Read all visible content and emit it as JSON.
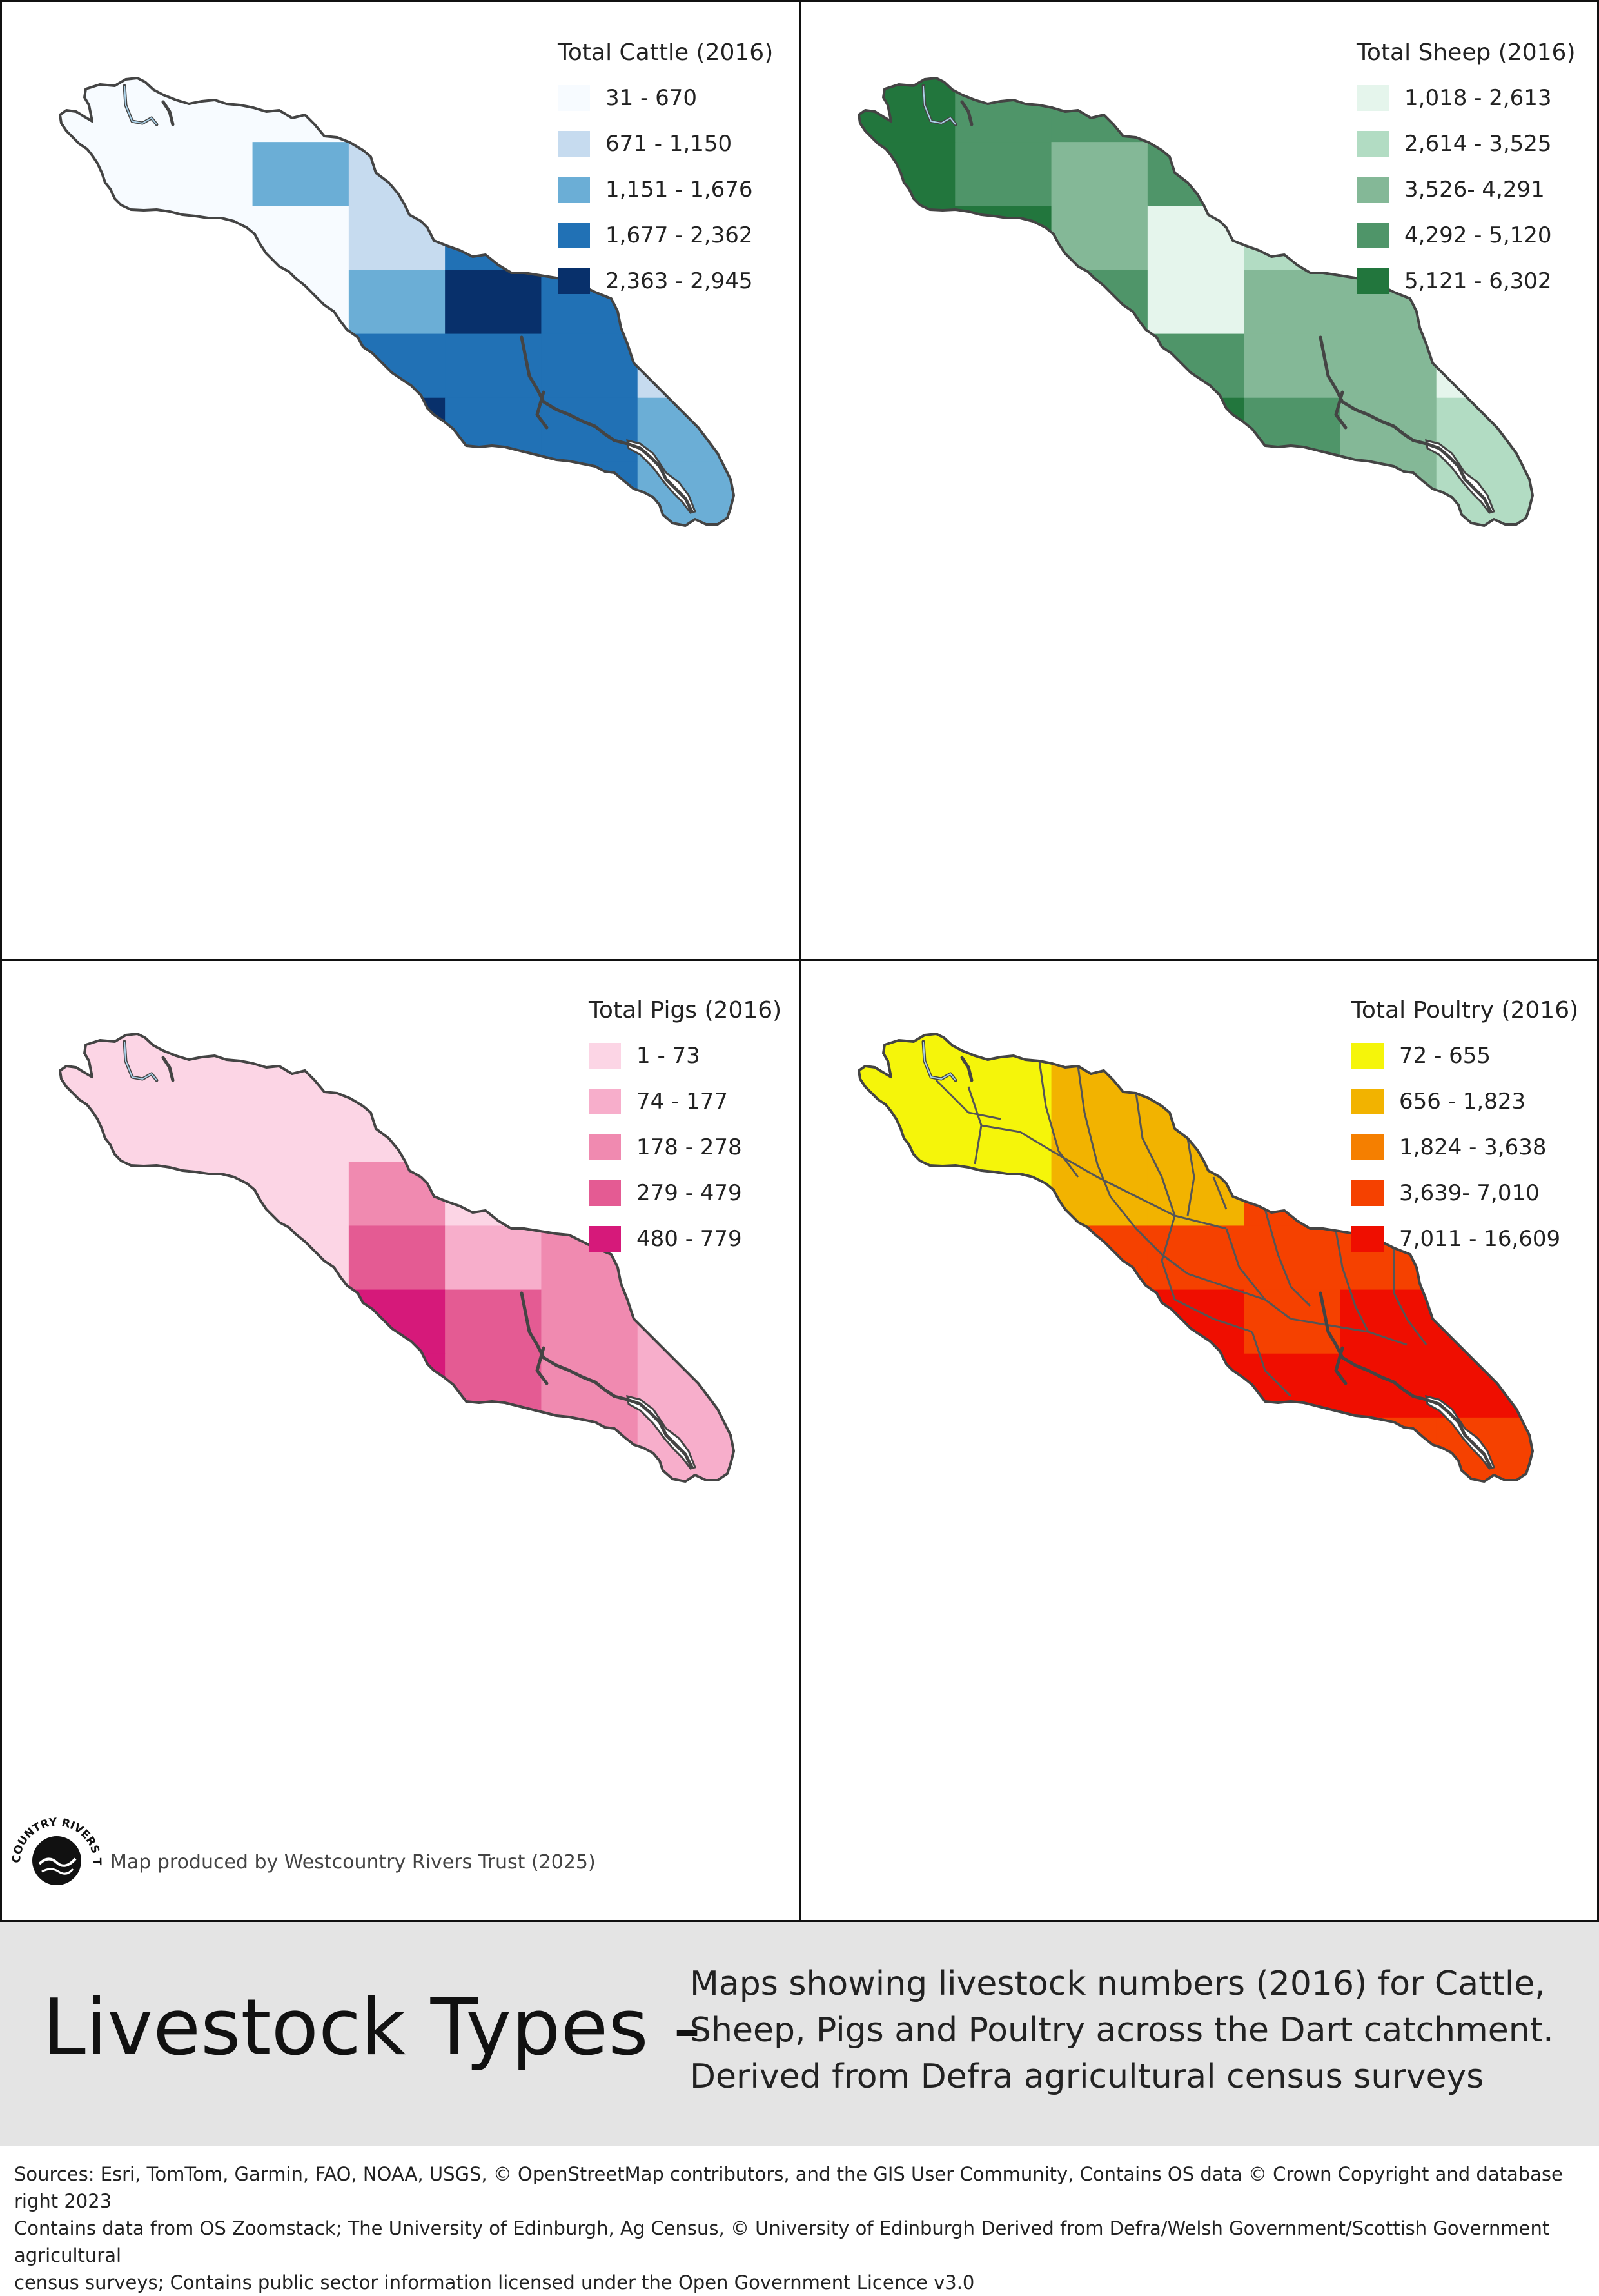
{
  "maps": [
    {
      "id": "cattle",
      "legend_title": "Total Cattle (2016)",
      "classes": [
        {
          "label": "31 - 670",
          "color": "#f7fbff"
        },
        {
          "label": "671 - 1,150",
          "color": "#c6dbef"
        },
        {
          "label": "1,151 - 1,676",
          "color": "#6baed6"
        },
        {
          "label": "1,677 - 2,362",
          "color": "#2171b5"
        },
        {
          "label": "2,363 - 2,945",
          "color": "#08306b"
        }
      ],
      "show_rivers": true,
      "show_subcatchments": false
    },
    {
      "id": "sheep",
      "legend_title": "Total Sheep (2016)",
      "classes": [
        {
          "label": "1,018 - 2,613",
          "color": "#e5f5ec"
        },
        {
          "label": "2,614 - 3,525",
          "color": "#b2dcc3"
        },
        {
          "label": "3,526- 4,291",
          "color": "#84b897"
        },
        {
          "label": "4,292 - 5,120",
          "color": "#4f9569"
        },
        {
          "label": "5,121 - 6,302",
          "color": "#22763d"
        }
      ],
      "show_rivers": true,
      "show_subcatchments": false
    },
    {
      "id": "pigs",
      "legend_title": "Total Pigs (2016)",
      "classes": [
        {
          "label": "1 - 73",
          "color": "#fcd5e5"
        },
        {
          "label": "74 - 177",
          "color": "#f7aecb"
        },
        {
          "label": "178 - 278",
          "color": "#f08ab0"
        },
        {
          "label": "279 - 479",
          "color": "#e45b93"
        },
        {
          "label": "480 - 779",
          "color": "#d6197a"
        }
      ],
      "show_rivers": true,
      "show_subcatchments": false
    },
    {
      "id": "poultry",
      "legend_title": "Total Poultry (2016)",
      "classes": [
        {
          "label": "72 - 655",
          "color": "#f5f50a"
        },
        {
          "label": "656 - 1,823",
          "color": "#f2b300"
        },
        {
          "label": "1,824 - 3,638",
          "color": "#f57f00"
        },
        {
          "label": "3,639- 7,010",
          "color": "#f54100"
        },
        {
          "label": "7,011 - 16,609",
          "color": "#ef0e00"
        }
      ],
      "show_rivers": true,
      "show_subcatchments": true
    }
  ],
  "grid_columns": [
    "c0",
    "c1",
    "c2",
    "c3",
    "c4",
    "c5",
    "c6"
  ],
  "grids": {
    "cattle": [
      [
        0,
        0,
        0,
        0,
        0,
        0,
        0
      ],
      [
        0,
        0,
        2,
        1,
        -1,
        -1,
        -1
      ],
      [
        0,
        0,
        0,
        1,
        3,
        -1,
        -1
      ],
      [
        -1,
        0,
        0,
        2,
        4,
        3,
        1
      ],
      [
        -1,
        -1,
        0,
        3,
        3,
        3,
        1
      ],
      [
        -1,
        -1,
        -1,
        4,
        3,
        3,
        2
      ],
      [
        -1,
        -1,
        -1,
        -1,
        4,
        3,
        2
      ]
    ],
    "sheep": [
      [
        4,
        3,
        3,
        3,
        -1,
        -1,
        -1
      ],
      [
        4,
        3,
        2,
        3,
        -1,
        -1,
        -1
      ],
      [
        4,
        4,
        2,
        0,
        1,
        -1,
        -1
      ],
      [
        -1,
        3,
        3,
        0,
        2,
        2,
        0
      ],
      [
        -1,
        -1,
        3,
        3,
        2,
        2,
        0
      ],
      [
        -1,
        -1,
        -1,
        4,
        3,
        2,
        1
      ],
      [
        -1,
        -1,
        -1,
        -1,
        4,
        2,
        1
      ]
    ],
    "pigs": [
      [
        0,
        0,
        0,
        0,
        0,
        0,
        0
      ],
      [
        0,
        0,
        0,
        0,
        0,
        -1,
        -1
      ],
      [
        0,
        0,
        0,
        2,
        0,
        1,
        -1
      ],
      [
        -1,
        0,
        0,
        3,
        1,
        2,
        1
      ],
      [
        -1,
        -1,
        0,
        4,
        3,
        2,
        1
      ],
      [
        -1,
        -1,
        -1,
        4,
        3,
        2,
        1
      ],
      [
        -1,
        -1,
        -1,
        -1,
        1,
        2,
        1
      ]
    ],
    "poultry": [
      [
        0,
        0,
        1,
        1,
        1,
        -1,
        -1
      ],
      [
        0,
        0,
        1,
        1,
        1,
        -1,
        -1
      ],
      [
        0,
        0,
        1,
        1,
        3,
        -1,
        -1
      ],
      [
        -1,
        1,
        3,
        3,
        3,
        3,
        3
      ],
      [
        -1,
        -1,
        3,
        4,
        3,
        4,
        4
      ],
      [
        -1,
        -1,
        -1,
        4,
        4,
        4,
        4
      ],
      [
        -1,
        -1,
        -1,
        -1,
        4,
        3,
        3
      ]
    ]
  },
  "credit": "Map produced by Westcountry Rivers Trust (2025)",
  "logo_text": "WESTCOUNTRY RIVERS TRUST",
  "title": "Livestock Types -",
  "subtitle_lines": [
    "Maps showing livestock numbers (2016) for Cattle,",
    "Sheep, Pigs and Poultry across the Dart catchment.",
    "Derived from Defra agricultural census surveys"
  ],
  "sources_lines": [
    "Sources: Esri, TomTom, Garmin, FAO, NOAA, USGS, © OpenStreetMap contributors, and the GIS User Community, Contains OS data © Crown Copyright and database right 2023",
    "Contains data from OS Zoomstack; The University of Edinburgh, Ag Census, © University of Edinburgh Derived from Defra/Welsh Government/Scottish Government agricultural",
    "census surveys; Contains public sector information licensed under the Open Government Licence v3.0"
  ],
  "colors": {
    "outline": "#444444",
    "river_inner": "#a9cfe6",
    "estuary": "#ffffff",
    "banner": "#e4e4e4"
  }
}
